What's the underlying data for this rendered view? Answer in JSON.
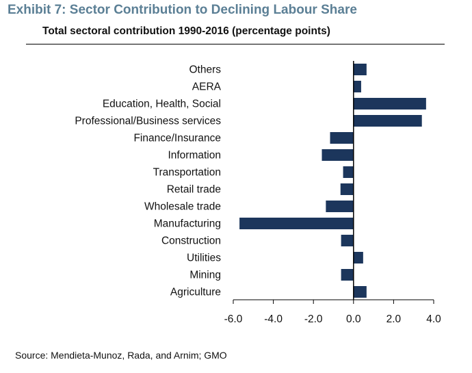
{
  "header": {
    "title": "Exhibit 7: Sector Contribution to Declining Labour Share",
    "subtitle": "Total sectoral contribution 1990-2016 (percentage points)"
  },
  "footer": {
    "source": "Source: Mendieta-Munoz, Rada, and Arnim;  GMO"
  },
  "colors": {
    "bar": "#1c365c",
    "title": "#5b7f95"
  },
  "chart_data": {
    "type": "bar",
    "orientation": "horizontal",
    "title": "Total sectoral contribution 1990-2016 (percentage points)",
    "xlabel": "",
    "ylabel": "",
    "categories": [
      "Others",
      "AERA",
      "Education, Health, Social",
      "Professional/Business services",
      "Finance/Insurance",
      "Information",
      "Transportation",
      "Retail trade",
      "Wholesale trade",
      "Manufacturing",
      "Construction",
      "Utilities",
      "Mining",
      "Agriculture"
    ],
    "values": [
      0.65,
      0.38,
      3.62,
      3.41,
      -1.17,
      -1.58,
      -0.52,
      -0.65,
      -1.38,
      -5.69,
      -0.62,
      0.48,
      -0.62,
      0.65
    ],
    "xlim": [
      -6.0,
      4.0
    ],
    "xticks": [
      -6.0,
      -4.0,
      -2.0,
      0.0,
      2.0,
      4.0
    ],
    "xtick_labels": [
      "-6.0",
      "-4.0",
      "-2.0",
      "0.0",
      "2.0",
      "4.0"
    ],
    "grid": false,
    "legend": "none"
  }
}
